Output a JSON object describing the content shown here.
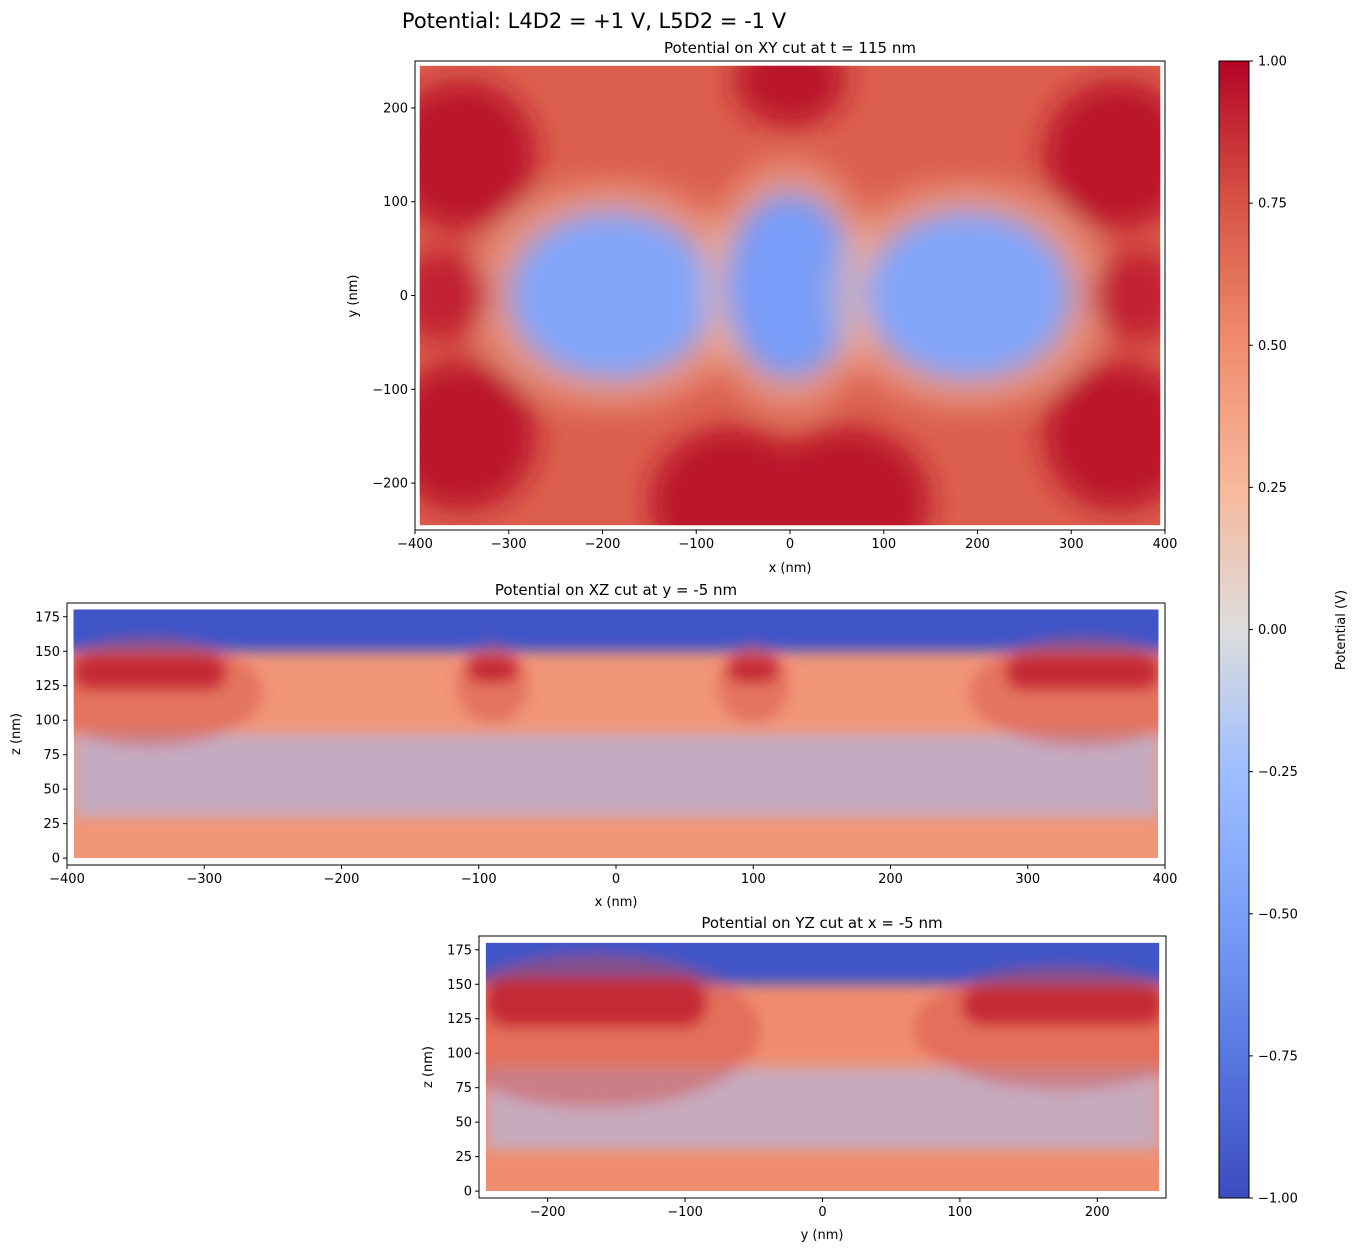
{
  "figure_title": "Potential: L4D2 = +1 V, L5D2 = -1 V",
  "colorbar": {
    "label": "Potential (V)",
    "range": [
      -1.0,
      1.0
    ],
    "ticks": [
      "1.00",
      "0.75",
      "0.50",
      "0.25",
      "0.00",
      "−0.25",
      "−0.50",
      "−0.75",
      "−1.00"
    ],
    "tick_values": [
      1.0,
      0.75,
      0.5,
      0.25,
      0.0,
      -0.25,
      -0.5,
      -0.75,
      -1.0
    ],
    "colormap": "coolwarm",
    "color_low": "#3b4cc0",
    "color_mid": "#dddddd",
    "color_high": "#b40426"
  },
  "chart_data": [
    {
      "type": "heatmap",
      "title": "Potential on XY cut at t = 115 nm",
      "xlabel": "x (nm)",
      "ylabel": "y (nm)",
      "xlim": [
        -400,
        400
      ],
      "ylim": [
        -250,
        250
      ],
      "xticks": [
        -400,
        -300,
        -200,
        -100,
        0,
        100,
        200,
        300,
        400
      ],
      "yticks": [
        -200,
        -100,
        0,
        100,
        200
      ],
      "xtick_labels": [
        "−400",
        "−300",
        "−200",
        "−100",
        "0",
        "100",
        "200",
        "300",
        "400"
      ],
      "ytick_labels": [
        "−200",
        "−100",
        "0",
        "100",
        "200"
      ],
      "data_extent": {
        "x": [
          -395,
          395
        ],
        "y": [
          -245,
          245
        ]
      },
      "background_value": 0.7,
      "features": [
        {
          "kind": "well",
          "x": -190,
          "y": 0,
          "rx": 110,
          "ry": 90,
          "value": -0.45
        },
        {
          "kind": "well",
          "x": 0,
          "y": 10,
          "rx": 70,
          "ry": 100,
          "value": -0.52
        },
        {
          "kind": "well",
          "x": 190,
          "y": 0,
          "rx": 110,
          "ry": 90,
          "value": -0.45
        },
        {
          "kind": "hot",
          "x": -350,
          "y": 150,
          "rx": 80,
          "ry": 80,
          "value": 0.95
        },
        {
          "kind": "hot",
          "x": 350,
          "y": 150,
          "rx": 80,
          "ry": 80,
          "value": 0.95
        },
        {
          "kind": "hot",
          "x": -350,
          "y": -150,
          "rx": 80,
          "ry": 80,
          "value": 0.95
        },
        {
          "kind": "hot",
          "x": 350,
          "y": -150,
          "rx": 80,
          "ry": 80,
          "value": 0.95
        },
        {
          "kind": "hot",
          "x": 0,
          "y": 230,
          "rx": 60,
          "ry": 50,
          "value": 0.95
        },
        {
          "kind": "hot",
          "x": -60,
          "y": -220,
          "rx": 90,
          "ry": 80,
          "value": 0.95
        },
        {
          "kind": "hot",
          "x": 60,
          "y": -220,
          "rx": 90,
          "ry": 80,
          "value": 0.95
        },
        {
          "kind": "hot",
          "x": -370,
          "y": 0,
          "rx": 50,
          "ry": 50,
          "value": 0.9
        },
        {
          "kind": "hot",
          "x": 370,
          "y": 0,
          "rx": 50,
          "ry": 50,
          "value": 0.9
        }
      ]
    },
    {
      "type": "heatmap",
      "title": "Potential on XZ cut at y = -5 nm",
      "xlabel": "x (nm)",
      "ylabel": "z (nm)",
      "xlim": [
        -400,
        400
      ],
      "ylim": [
        -5,
        185
      ],
      "xticks": [
        -400,
        -300,
        -200,
        -100,
        0,
        100,
        200,
        300,
        400
      ],
      "yticks": [
        0,
        25,
        50,
        75,
        100,
        125,
        150,
        175
      ],
      "xtick_labels": [
        "−400",
        "−300",
        "−200",
        "−100",
        "0",
        "100",
        "200",
        "300",
        "400"
      ],
      "ytick_labels": [
        "0",
        "25",
        "50",
        "75",
        "100",
        "125",
        "150",
        "175"
      ],
      "data_extent": {
        "x": [
          -395,
          395
        ],
        "y": [
          0,
          180
        ]
      },
      "background_value": 0.45,
      "layer_top_z": 150,
      "layer_top_value": -0.95,
      "features": [
        {
          "kind": "gate",
          "x": -340,
          "z": 135,
          "w": 110,
          "h": 25,
          "value": 0.97
        },
        {
          "kind": "gate",
          "x": 340,
          "z": 135,
          "w": 110,
          "h": 25,
          "value": 0.97
        },
        {
          "kind": "gate",
          "x": -90,
          "z": 137,
          "w": 35,
          "h": 18,
          "value": 0.97
        },
        {
          "kind": "gate",
          "x": 100,
          "z": 137,
          "w": 35,
          "h": 18,
          "value": 0.97
        }
      ]
    },
    {
      "type": "heatmap",
      "title": "Potential on YZ cut at x = -5 nm",
      "xlabel": "y (nm)",
      "ylabel": "z (nm)",
      "xlim": [
        -250,
        250
      ],
      "ylim": [
        -5,
        185
      ],
      "xticks": [
        -200,
        -100,
        0,
        100,
        200
      ],
      "yticks": [
        0,
        25,
        50,
        75,
        100,
        125,
        150,
        175
      ],
      "xtick_labels": [
        "−200",
        "−100",
        "0",
        "100",
        "200"
      ],
      "ytick_labels": [
        "0",
        "25",
        "50",
        "75",
        "100",
        "125",
        "150",
        "175"
      ],
      "data_extent": {
        "x": [
          -245,
          245
        ],
        "y": [
          0,
          180
        ]
      },
      "background_value": 0.5,
      "layer_top_z": 150,
      "layer_top_value": -0.95,
      "features": [
        {
          "kind": "gate",
          "x": -165,
          "z": 137,
          "w": 160,
          "h": 35,
          "value": 0.97
        },
        {
          "kind": "gate",
          "x": 175,
          "z": 135,
          "w": 145,
          "h": 28,
          "value": 0.97
        }
      ]
    }
  ]
}
